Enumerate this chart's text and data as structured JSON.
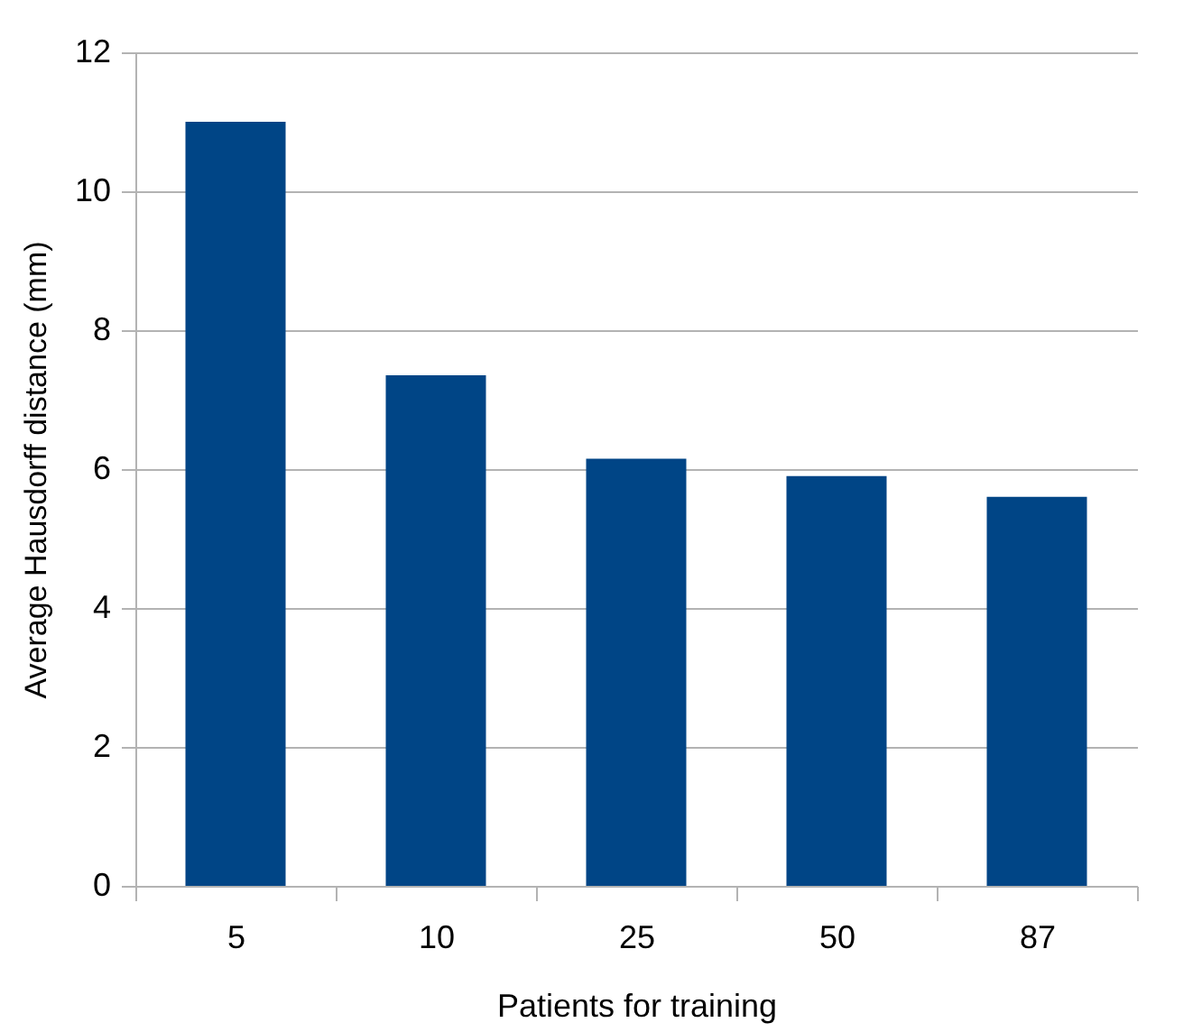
{
  "chart_data": {
    "type": "bar",
    "xlabel": "Patients for training",
    "ylabel": "Average Hausdorff distance (mm)",
    "categories": [
      "5",
      "10",
      "25",
      "50",
      "87"
    ],
    "values": [
      11.0,
      7.35,
      6.15,
      5.9,
      5.6
    ],
    "color": "#004586",
    "ylim": [
      0,
      12
    ],
    "yticks": [
      0,
      2,
      4,
      6,
      8,
      10,
      12
    ],
    "grid": "y"
  }
}
